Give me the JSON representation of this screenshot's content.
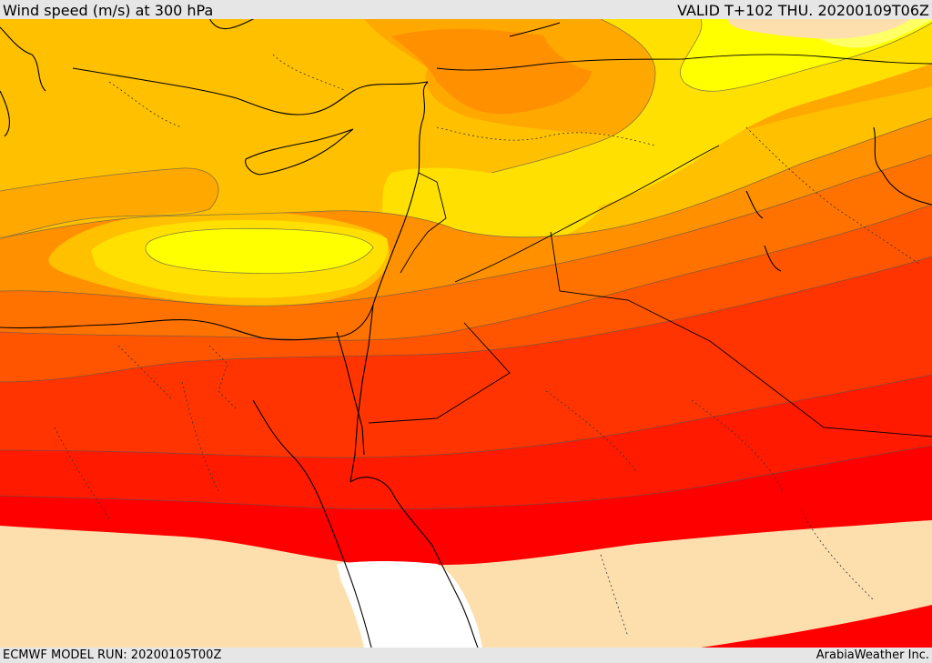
{
  "header": {
    "title": "Wind speed (m/s) at 300 hPa",
    "valid_time": "VALID T+102 THU. 20200109T06Z"
  },
  "footer": {
    "model_run": "ECMWF MODEL RUN: 20200105T00Z",
    "credit": "ArabiaWeather Inc."
  },
  "map": {
    "variable": "wind speed",
    "level": "300 hPa",
    "colors": {
      "lowest": "#ffffff",
      "very_low": "#fddfae",
      "light_yellow": "#ffff66",
      "bright_yellow": "#ffff00",
      "yellow": "#ffe000",
      "amber": "#ffc000",
      "orange_light": "#ffa800",
      "orange": "#ff9000",
      "orange_dark": "#ff7200",
      "red_orange": "#ff5500",
      "red_light": "#ff3400",
      "red": "#ff1a00",
      "red_max": "#ff0000"
    }
  }
}
